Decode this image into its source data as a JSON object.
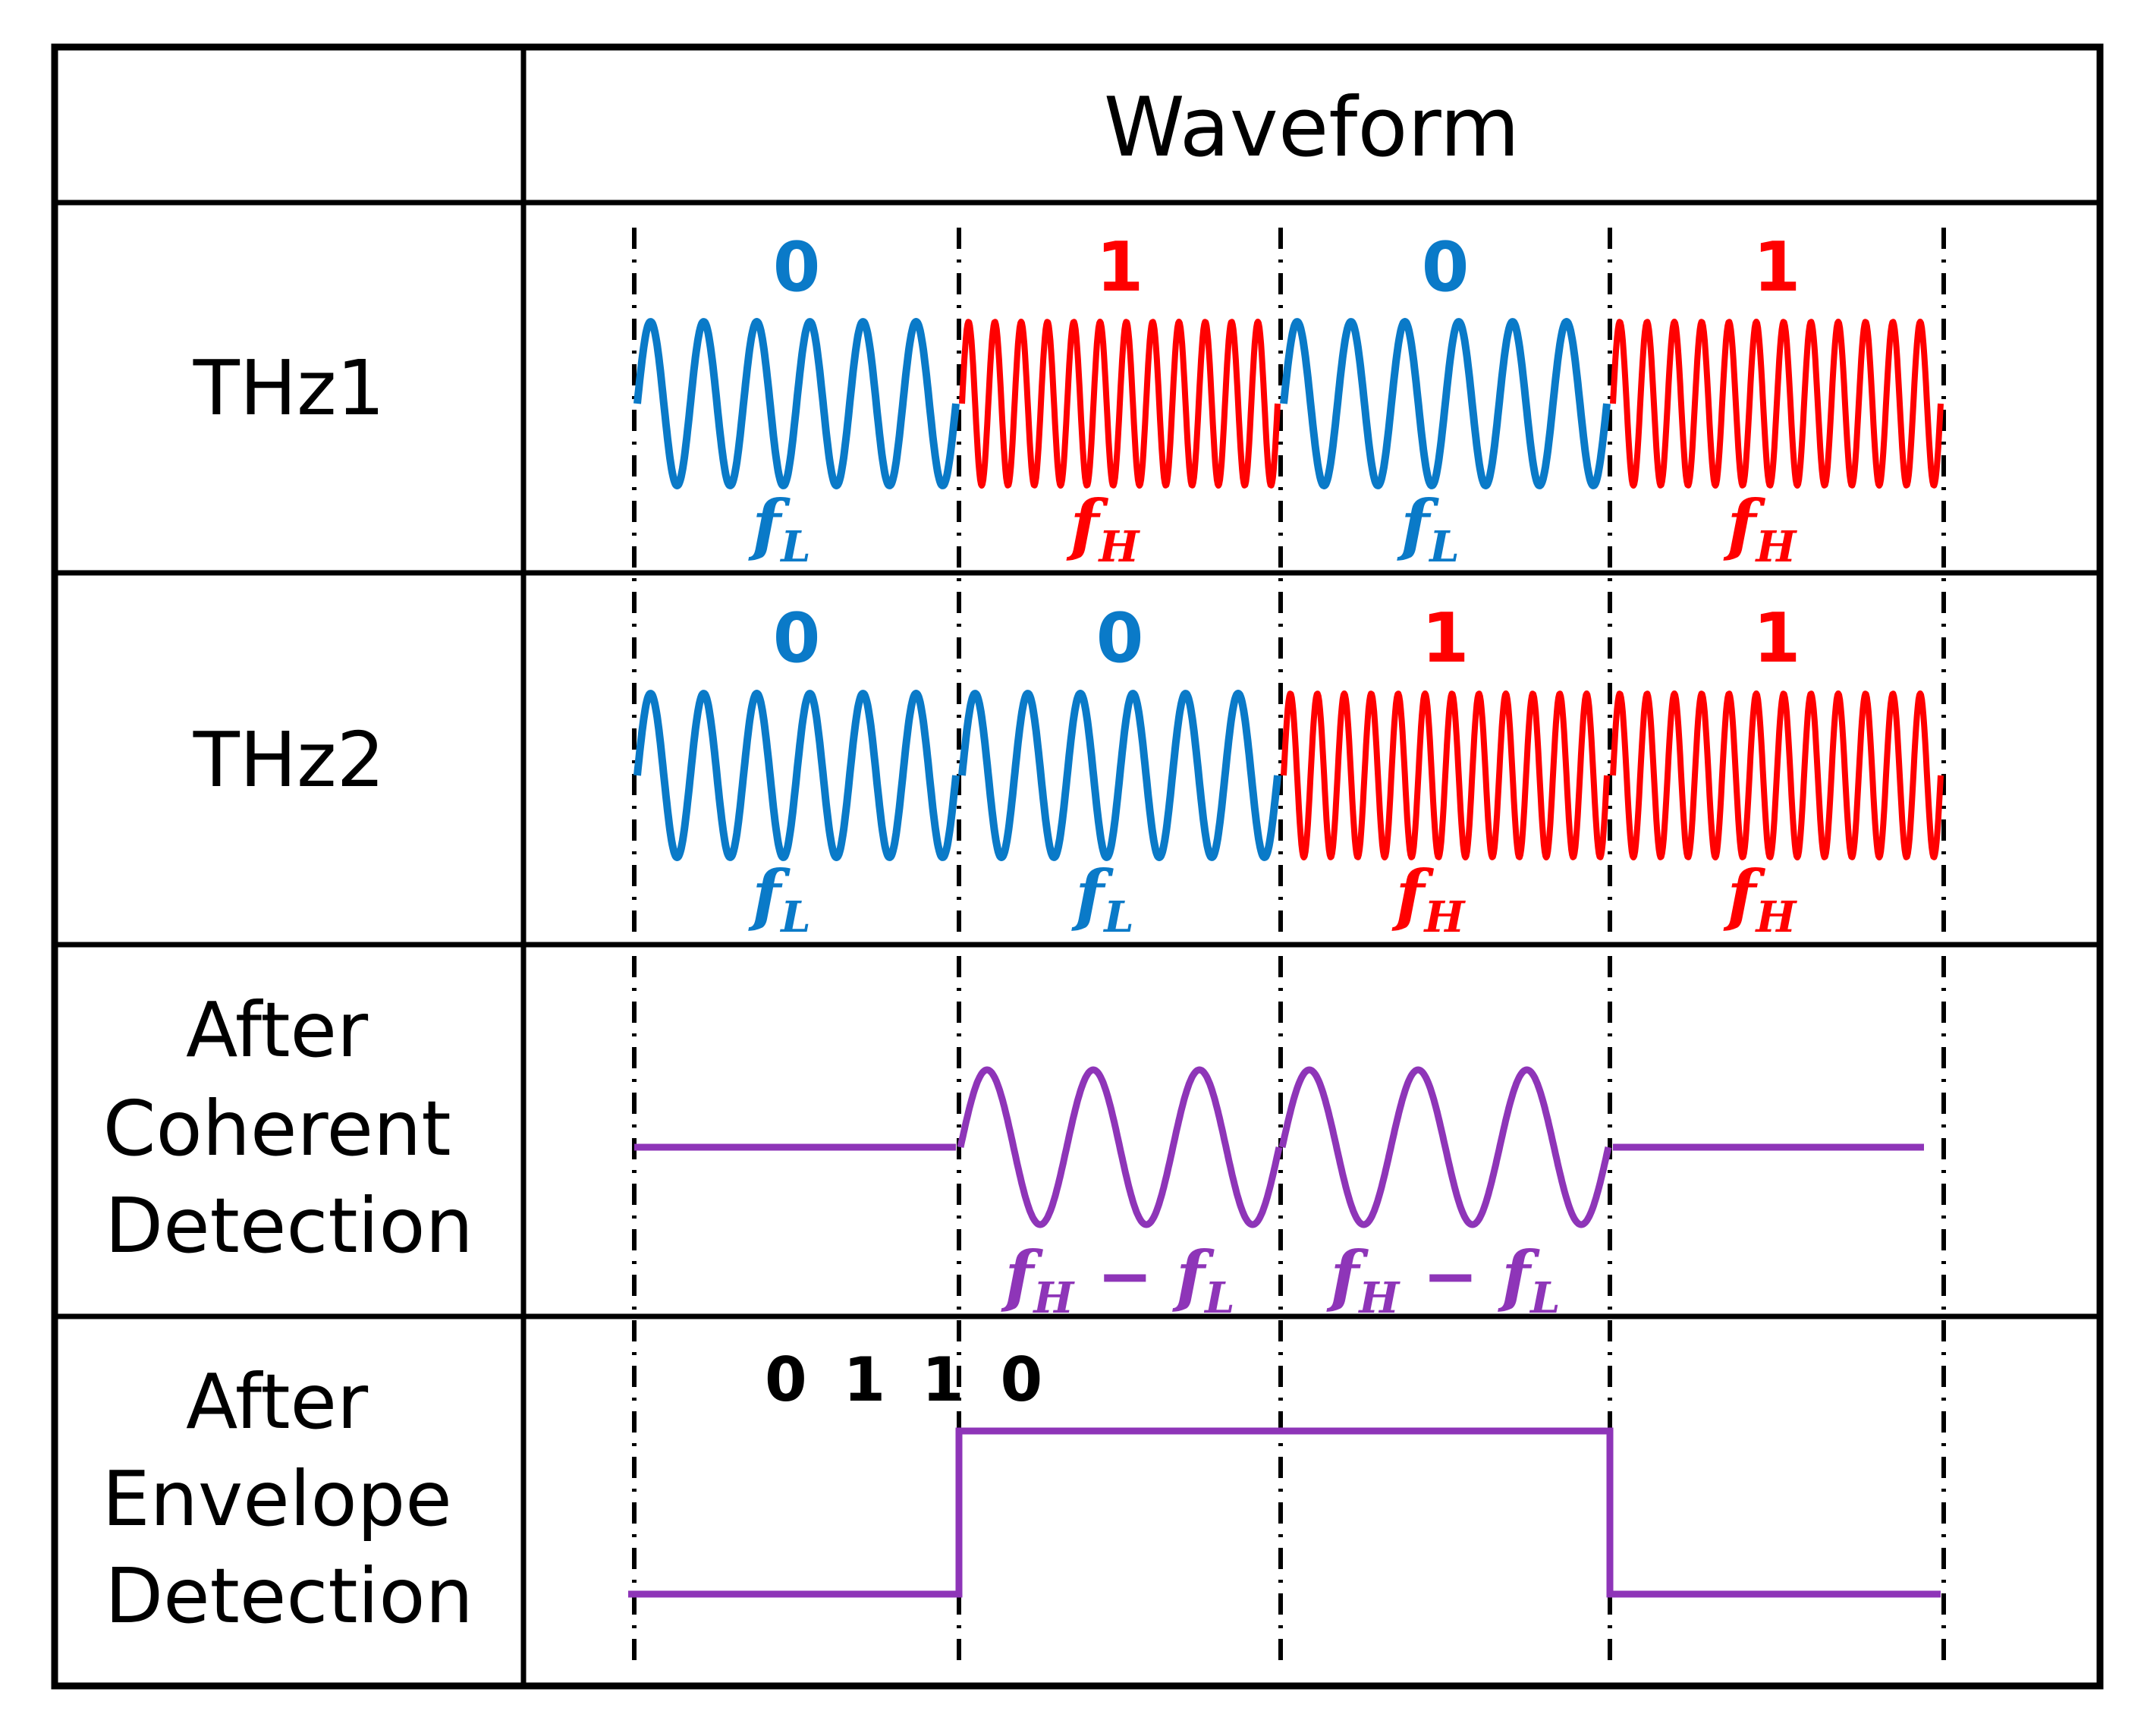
{
  "table": {
    "corner": "",
    "header": "Waveform",
    "rows": [
      {
        "label_lines": [
          "THz1"
        ]
      },
      {
        "label_lines": [
          "THz2"
        ]
      },
      {
        "label_lines": [
          "After",
          "Coherent",
          "Detection"
        ]
      },
      {
        "label_lines": [
          "After",
          "Envelope",
          "Detection"
        ]
      }
    ]
  },
  "thz1": {
    "bits": [
      "0",
      "1",
      "0",
      "1"
    ],
    "freq_labels": [
      {
        "main": "f",
        "sub": "L"
      },
      {
        "main": "f",
        "sub": "H"
      },
      {
        "main": "f",
        "sub": "L"
      },
      {
        "main": "f",
        "sub": "H"
      }
    ]
  },
  "thz2": {
    "bits": [
      "0",
      "0",
      "1",
      "1"
    ],
    "freq_labels": [
      {
        "main": "f",
        "sub": "L"
      },
      {
        "main": "f",
        "sub": "L"
      },
      {
        "main": "f",
        "sub": "H"
      },
      {
        "main": "f",
        "sub": "H"
      }
    ]
  },
  "coherent": {
    "beat_label": {
      "a": "f",
      "a_sub": "H",
      "op": " − ",
      "b": "f",
      "b_sub": "L"
    },
    "segments": [
      "flat",
      "beat",
      "beat",
      "flat"
    ]
  },
  "envelope": {
    "code": "0 1 1 0",
    "levels": [
      0,
      1,
      1,
      0
    ]
  },
  "signal": {
    "low_cycles": 6,
    "high_cycles": 12,
    "beat_cycles": 3
  },
  "colors": {
    "low": "#0a7ac8",
    "high": "#ff0000",
    "result": "#8e35b8",
    "grid": "#000000"
  }
}
